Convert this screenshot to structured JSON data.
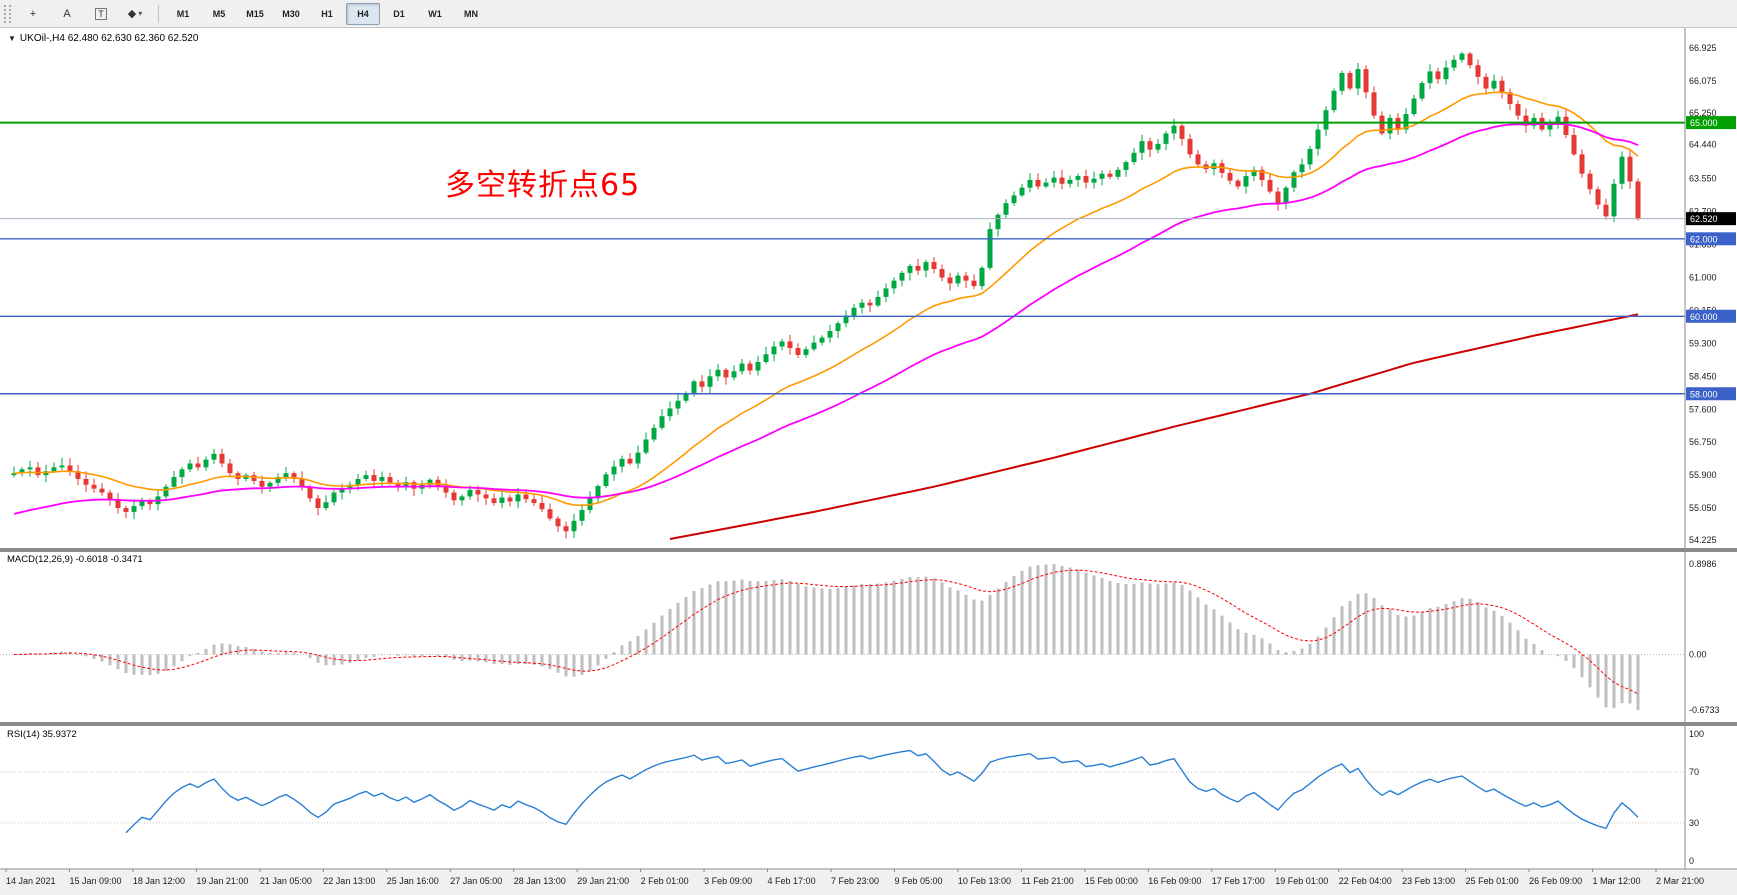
{
  "toolbar": {
    "tool_buttons": [
      {
        "name": "crosshair-tool",
        "glyph": "+"
      },
      {
        "name": "text-tool",
        "glyph": "A"
      },
      {
        "name": "text-label-tool",
        "glyph": "T",
        "boxed": true
      },
      {
        "name": "shapes-dropdown",
        "glyph": "◆",
        "caret": "▾"
      }
    ],
    "timeframes": [
      "M1",
      "M5",
      "M15",
      "M30",
      "H1",
      "H4",
      "D1",
      "W1",
      "MN"
    ],
    "active_timeframe": "H4"
  },
  "chart": {
    "collapse_icon": "▼",
    "title": "UKOil-,H4 62.480 62.630 62.360 62.520",
    "annotation": {
      "text": "多空转折点65",
      "color": "#FF0000"
    }
  },
  "chart_data": {
    "type": "candlestick",
    "symbol": "UKOil-",
    "period": "H4",
    "ohlc": {
      "open": 62.48,
      "high": 62.63,
      "low": 62.36,
      "close": 62.52
    },
    "first_open": 55.9,
    "closes": [
      55.95,
      56.05,
      56.1,
      55.9,
      56.0,
      56.1,
      56.15,
      56.0,
      55.8,
      55.65,
      55.55,
      55.45,
      55.25,
      55.05,
      54.95,
      55.1,
      55.25,
      55.15,
      55.35,
      55.6,
      55.85,
      56.05,
      56.2,
      56.1,
      56.3,
      56.45,
      56.2,
      55.95,
      55.8,
      55.9,
      55.75,
      55.6,
      55.7,
      55.85,
      55.95,
      55.8,
      55.6,
      55.3,
      55.05,
      55.2,
      55.45,
      55.55,
      55.65,
      55.8,
      55.9,
      55.75,
      55.85,
      55.7,
      55.6,
      55.72,
      55.55,
      55.65,
      55.78,
      55.6,
      55.45,
      55.25,
      55.35,
      55.52,
      55.4,
      55.3,
      55.18,
      55.32,
      55.22,
      55.4,
      55.28,
      55.18,
      55.02,
      54.78,
      54.58,
      54.45,
      54.72,
      55.0,
      55.3,
      55.62,
      55.92,
      56.12,
      56.32,
      56.2,
      56.48,
      56.82,
      57.12,
      57.42,
      57.62,
      57.82,
      58.02,
      58.32,
      58.18,
      58.45,
      58.62,
      58.42,
      58.58,
      58.78,
      58.6,
      58.82,
      59.02,
      59.22,
      59.35,
      59.18,
      59.0,
      59.15,
      59.32,
      59.45,
      59.62,
      59.82,
      60.02,
      60.22,
      60.35,
      60.28,
      60.5,
      60.72,
      60.92,
      61.12,
      61.3,
      61.18,
      61.4,
      61.22,
      61.0,
      60.85,
      61.05,
      60.92,
      60.78,
      61.25,
      62.25,
      62.62,
      62.92,
      63.12,
      63.32,
      63.52,
      63.35,
      63.45,
      63.58,
      63.42,
      63.52,
      63.62,
      63.45,
      63.55,
      63.68,
      63.6,
      63.78,
      63.98,
      64.22,
      64.52,
      64.3,
      64.45,
      64.72,
      64.92,
      64.58,
      64.18,
      63.92,
      63.8,
      63.95,
      63.7,
      63.5,
      63.35,
      63.62,
      63.78,
      63.52,
      63.22,
      62.92,
      63.32,
      63.72,
      63.92,
      64.32,
      64.82,
      65.32,
      65.82,
      66.28,
      65.88,
      66.38,
      65.78,
      65.18,
      64.72,
      65.12,
      64.82,
      65.22,
      65.62,
      66.02,
      66.32,
      66.12,
      66.42,
      66.62,
      66.78,
      66.48,
      66.18,
      65.88,
      66.08,
      65.78,
      65.48,
      65.18,
      64.92,
      65.12,
      64.82,
      64.95,
      65.15,
      64.68,
      64.18,
      63.68,
      63.28,
      62.88,
      62.58,
      63.42,
      64.12,
      63.48,
      62.52
    ],
    "candle_colors": {
      "up": "#00A843",
      "down": "#E53935"
    },
    "price_axis": {
      "max": 66.925,
      "min": 54.225,
      "labels": [
        "66.925",
        "66.075",
        "65.250",
        "64.440",
        "63.550",
        "62.700",
        "61.850",
        "61.000",
        "60.150",
        "59.300",
        "58.450",
        "57.600",
        "56.750",
        "55.900",
        "55.050",
        "54.225"
      ]
    },
    "hlines": [
      {
        "price": 65.0,
        "color": "#00A000",
        "badge": "65.000",
        "width": 2
      },
      {
        "price": 62.0,
        "color": "#3A62C8",
        "badge": "62.000",
        "width": 1.4
      },
      {
        "price": 60.0,
        "color": "#3A62C8",
        "badge": "60.000",
        "width": 1.4
      },
      {
        "price": 58.0,
        "color": "#3A62C8",
        "badge": "58.000",
        "width": 1.4
      }
    ],
    "bid": {
      "price": 62.52,
      "badge": "62.520",
      "badge_color": "#000000",
      "line_color": "#a8b0c4"
    },
    "moving_averages": [
      {
        "name": "fast",
        "period": 20,
        "color": "#FF9900",
        "seed": 55.95
      },
      {
        "name": "mid",
        "period": 45,
        "color": "#FF00FF",
        "seed": 54.85
      }
    ],
    "slow_ma": {
      "color": "#CC0000",
      "anchors": [
        [
          82,
          54.25
        ],
        [
          100,
          54.95
        ],
        [
          115,
          55.6
        ],
        [
          130,
          56.35
        ],
        [
          145,
          57.15
        ],
        [
          162,
          58.0
        ],
        [
          175,
          58.8
        ],
        [
          190,
          59.5
        ],
        [
          203,
          60.05
        ]
      ]
    },
    "time_axis": [
      "14 Jan 2021",
      "15 Jan 09:00",
      "18 Jan 12:00",
      "19 Jan 21:00",
      "21 Jan 05:00",
      "22 Jan 13:00",
      "25 Jan 16:00",
      "27 Jan 05:00",
      "28 Jan 13:00",
      "29 Jan 21:00",
      "2 Feb 01:00",
      "3 Feb 09:00",
      "4 Feb 17:00",
      "7 Feb 23:00",
      "9 Feb 05:00",
      "10 Feb 13:00",
      "11 Feb 21:00",
      "15 Feb 00:00",
      "16 Feb 09:00",
      "17 Feb 17:00",
      "19 Feb 01:00",
      "22 Feb 04:00",
      "23 Feb 13:00",
      "25 Feb 01:00",
      "26 Feb 09:00",
      "1 Mar 12:00",
      "2 Mar 21:00"
    ],
    "indicators": {
      "macd": {
        "label": "MACD(12,26,9) -0.6018 -0.3471",
        "fast": 12,
        "slow": 26,
        "signal": 9,
        "values_display": [
          -0.6018,
          -0.3471
        ],
        "axis_labels": [
          "0.8986",
          "0.00",
          "-0.6733"
        ],
        "histogram_color": "#BFBFBF",
        "signal_color": "#FF0000"
      },
      "rsi": {
        "label": "RSI(14) 35.9372",
        "period": 14,
        "value": 35.9372,
        "levels": [
          70,
          30
        ],
        "axis_labels": [
          "100",
          "70",
          "30",
          "0"
        ],
        "line_color": "#2A7FD4"
      }
    }
  }
}
